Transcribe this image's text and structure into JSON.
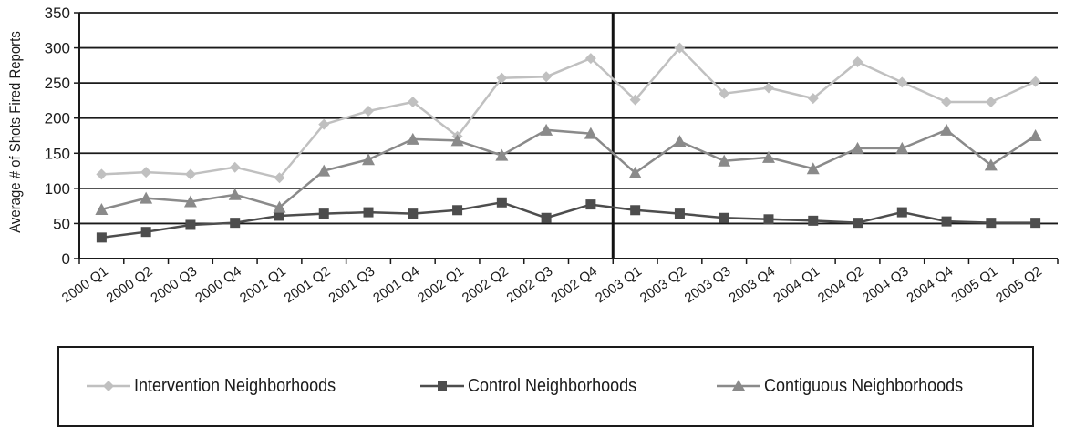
{
  "chart_data": {
    "type": "line",
    "title": "",
    "xlabel": "",
    "ylabel": "Average # of Shots Fired Reports",
    "ylim": [
      0,
      350
    ],
    "yticks": [
      0,
      50,
      100,
      150,
      200,
      250,
      300,
      350
    ],
    "grid": true,
    "divider_after_category": "2002 Q4",
    "categories": [
      "2000 Q1",
      "2000 Q2",
      "2000 Q3",
      "2000 Q4",
      "2001 Q1",
      "2001 Q2",
      "2001 Q3",
      "2001 Q4",
      "2002 Q1",
      "2002 Q2",
      "2002 Q3",
      "2002 Q4",
      "2003 Q1",
      "2003 Q2",
      "2003 Q3",
      "2003 Q4",
      "2004 Q1",
      "2004 Q2",
      "2004 Q3",
      "2004 Q4",
      "2005 Q1",
      "2005 Q2"
    ],
    "series": [
      {
        "name": "Intervention Neighborhoods",
        "color": "#c0c0c0",
        "marker": "diamond",
        "values": [
          120,
          123,
          120,
          130,
          115,
          191,
          210,
          223,
          174,
          257,
          259,
          285,
          226,
          300,
          235,
          243,
          228,
          280,
          251,
          223,
          223,
          252
        ]
      },
      {
        "name": "Control Neighborhoods",
        "color": "#4d4d4d",
        "marker": "square",
        "values": [
          30,
          38,
          48,
          51,
          61,
          64,
          66,
          64,
          69,
          80,
          58,
          77,
          69,
          64,
          58,
          56,
          54,
          51,
          66,
          53,
          51,
          51
        ]
      },
      {
        "name": "Contiguous Neighborhoods",
        "color": "#8a8a8a",
        "marker": "triangle",
        "values": [
          70,
          86,
          81,
          91,
          73,
          125,
          141,
          170,
          168,
          147,
          183,
          178,
          122,
          167,
          139,
          144,
          128,
          157,
          157,
          183,
          133,
          175
        ]
      }
    ],
    "legend_position": "bottom"
  }
}
